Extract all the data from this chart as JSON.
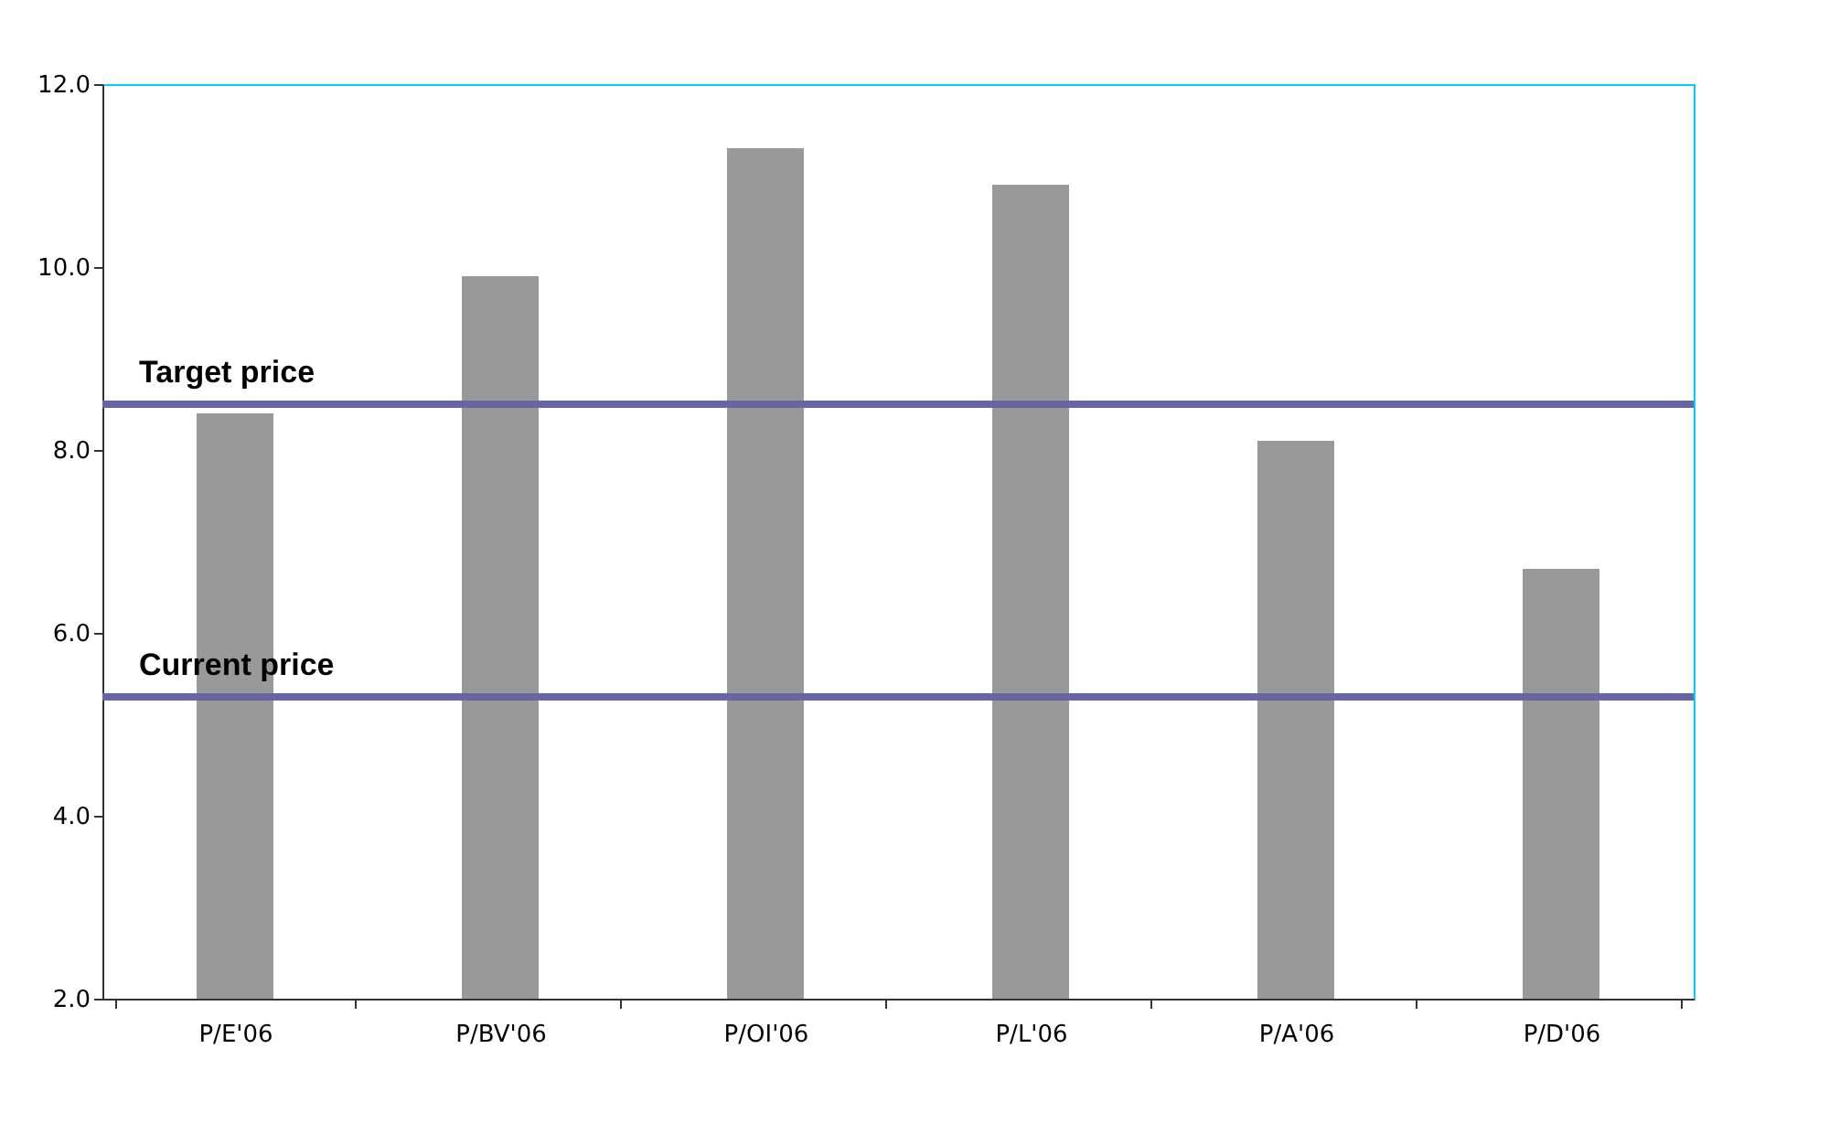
{
  "chart_data": {
    "type": "bar",
    "categories": [
      "P/E'06",
      "P/BV'06",
      "P/OI'06",
      "P/L'06",
      "P/A'06",
      "P/D'06"
    ],
    "values": [
      8.4,
      9.9,
      11.3,
      10.9,
      8.1,
      6.7
    ],
    "color": "#999999",
    "ylim": [
      2,
      12
    ],
    "yticks": [
      {
        "value": 2,
        "label": "2.0"
      },
      {
        "value": 4,
        "label": "4.0"
      },
      {
        "value": 6,
        "label": "6.0"
      },
      {
        "value": 8,
        "label": "8.0"
      },
      {
        "value": 10,
        "label": "10.0"
      },
      {
        "value": 12,
        "label": "12.0"
      }
    ],
    "ref_lines": [
      {
        "axis": "y",
        "value": 8.5,
        "label": "Target price",
        "color": "#6666a0"
      },
      {
        "axis": "y",
        "value": 5.3,
        "label": "Current price",
        "color": "#6666a0"
      }
    ],
    "grid": false
  }
}
